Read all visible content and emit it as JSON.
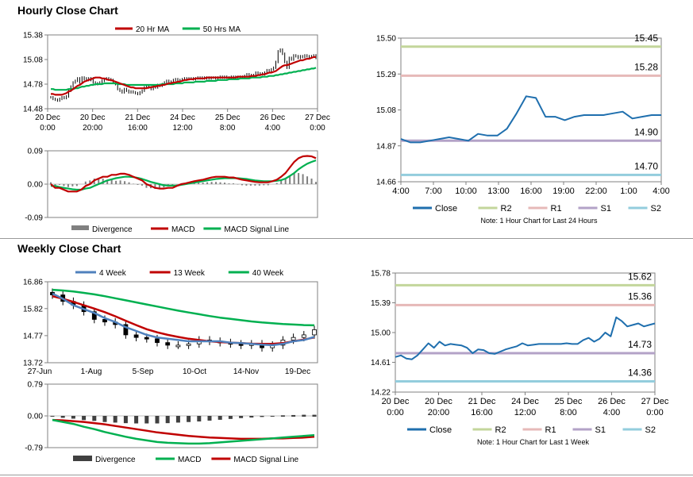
{
  "sections": {
    "hourly_title": "Hourly Close Chart",
    "weekly_title": "Weekly Close Chart"
  },
  "chart_data": [
    {
      "id": "hourly-price",
      "type": "line",
      "title": "",
      "ylim": [
        14.48,
        15.38
      ],
      "yticks": [
        "15.38",
        "15.08",
        "14.78",
        "14.48"
      ],
      "ytick_values": [
        15.38,
        15.08,
        14.78,
        14.48
      ],
      "xticks": [
        [
          "20 Dec",
          "0:00"
        ],
        [
          "20 Dec",
          "20:00"
        ],
        [
          "21 Dec",
          "16:00"
        ],
        [
          "24 Dec",
          "12:00"
        ],
        [
          "25 Dec",
          "8:00"
        ],
        [
          "26 Dec",
          "4:00"
        ],
        [
          "27 Dec",
          "0:00"
        ]
      ],
      "n": 120,
      "legend": [
        {
          "name": "20 Hr MA",
          "color": "#c00000"
        },
        {
          "name": "50 Hrs MA",
          "color": "#00b050"
        }
      ],
      "close": [
        14.62,
        14.6,
        14.59,
        14.58,
        14.6,
        14.62,
        14.61,
        14.63,
        14.7,
        14.75,
        14.8,
        14.82,
        14.85,
        14.8,
        14.86,
        14.84,
        14.85,
        14.83,
        14.85,
        14.8,
        14.78,
        14.79,
        14.8,
        14.82,
        14.84,
        14.85,
        14.84,
        14.83,
        14.8,
        14.78,
        14.72,
        14.7,
        14.68,
        14.72,
        14.7,
        14.68,
        14.69,
        14.68,
        14.67,
        14.66,
        14.68,
        14.7,
        14.74,
        14.76,
        14.74,
        14.72,
        14.75,
        14.74,
        14.77,
        14.76,
        14.78,
        14.8,
        14.82,
        14.8,
        14.81,
        14.83,
        14.84,
        14.82,
        14.83,
        14.84,
        14.85,
        14.84,
        14.85,
        14.85,
        14.84,
        14.85,
        14.86,
        14.85,
        14.86,
        14.85,
        14.86,
        14.85,
        14.86,
        14.86,
        14.85,
        14.86,
        14.87,
        14.86,
        14.87,
        14.86,
        14.86,
        14.87,
        14.86,
        14.87,
        14.86,
        14.87,
        14.86,
        14.88,
        14.9,
        14.88,
        14.89,
        14.87,
        14.92,
        14.9,
        14.91,
        14.9,
        14.92,
        14.95,
        14.93,
        14.96,
        14.98,
        15.05,
        15.18,
        15.2,
        15.15,
        15.05,
        14.98,
        15.1,
        15.08,
        15.13,
        15.12,
        15.1,
        15.12,
        15.11,
        15.13,
        15.12,
        15.11,
        15.12,
        15.13,
        15.1
      ],
      "ma20": [
        14.66,
        14.66,
        14.65,
        14.65,
        14.65,
        14.65,
        14.66,
        14.67,
        14.69,
        14.7,
        14.72,
        14.74,
        14.76,
        14.77,
        14.79,
        14.81,
        14.82,
        14.83,
        14.84,
        14.85,
        14.86,
        14.86,
        14.86,
        14.85,
        14.85,
        14.84,
        14.83,
        14.83,
        14.82,
        14.81,
        14.8,
        14.79,
        14.78,
        14.77,
        14.76,
        14.75,
        14.74,
        14.74,
        14.73,
        14.73,
        14.73,
        14.73,
        14.73,
        14.73,
        14.74,
        14.74,
        14.75,
        14.75,
        14.76,
        14.76,
        14.77,
        14.77,
        14.78,
        14.79,
        14.79,
        14.8,
        14.8,
        14.81,
        14.81,
        14.82,
        14.83,
        14.83,
        14.84,
        14.84,
        14.84,
        14.85,
        14.85,
        14.85,
        14.85,
        14.85,
        14.86,
        14.86,
        14.86,
        14.86,
        14.86,
        14.86,
        14.86,
        14.86,
        14.86,
        14.86,
        14.86,
        14.86,
        14.86,
        14.86,
        14.87,
        14.87,
        14.87,
        14.87,
        14.87,
        14.87,
        14.88,
        14.88,
        14.88,
        14.89,
        14.89,
        14.9,
        14.9,
        14.91,
        14.92,
        14.92,
        14.93,
        14.94,
        14.96,
        14.98,
        15.0,
        15.01,
        15.01,
        15.02,
        15.03,
        15.04,
        15.05,
        15.06,
        15.07,
        15.07,
        15.08,
        15.09,
        15.09,
        15.1,
        15.11,
        15.11
      ],
      "ma50": [
        14.72,
        14.72,
        14.71,
        14.71,
        14.71,
        14.71,
        14.71,
        14.71,
        14.72,
        14.72,
        14.72,
        14.73,
        14.73,
        14.74,
        14.75,
        14.75,
        14.76,
        14.76,
        14.77,
        14.77,
        14.78,
        14.78,
        14.78,
        14.78,
        14.79,
        14.79,
        14.79,
        14.79,
        14.79,
        14.79,
        14.78,
        14.78,
        14.78,
        14.78,
        14.77,
        14.77,
        14.77,
        14.77,
        14.77,
        14.77,
        14.77,
        14.77,
        14.77,
        14.77,
        14.77,
        14.77,
        14.77,
        14.77,
        14.77,
        14.77,
        14.78,
        14.78,
        14.78,
        14.78,
        14.78,
        14.78,
        14.79,
        14.79,
        14.79,
        14.79,
        14.8,
        14.8,
        14.8,
        14.8,
        14.8,
        14.81,
        14.81,
        14.81,
        14.81,
        14.81,
        14.82,
        14.82,
        14.82,
        14.82,
        14.82,
        14.83,
        14.83,
        14.83,
        14.83,
        14.83,
        14.84,
        14.84,
        14.84,
        14.84,
        14.84,
        14.85,
        14.85,
        14.85,
        14.85,
        14.85,
        14.86,
        14.86,
        14.86,
        14.86,
        14.86,
        14.87,
        14.87,
        14.87,
        14.88,
        14.88,
        14.88,
        14.89,
        14.89,
        14.9,
        14.9,
        14.91,
        14.91,
        14.92,
        14.92,
        14.93,
        14.93,
        14.94,
        14.94,
        14.95,
        14.95,
        14.96,
        14.96,
        14.97,
        14.97,
        14.98
      ]
    },
    {
      "id": "hourly-macd",
      "type": "line",
      "ylim": [
        -0.09,
        0.09
      ],
      "yticks": [
        "0.09",
        "0.00",
        "-0.09"
      ],
      "ytick_values": [
        0.09,
        0.0,
        -0.09
      ],
      "legend": [
        {
          "name": "Divergence",
          "color": "#808080"
        },
        {
          "name": "MACD",
          "color": "#c00000"
        },
        {
          "name": "MACD Signal Line",
          "color": "#00b050"
        }
      ],
      "macd": [
        0.0,
        -0.01,
        -0.01,
        -0.015,
        -0.02,
        -0.02,
        -0.02,
        -0.015,
        -0.005,
        0.0,
        0.01,
        0.015,
        0.02,
        0.02,
        0.025,
        0.025,
        0.028,
        0.028,
        0.025,
        0.02,
        0.015,
        0.01,
        0.0,
        -0.005,
        -0.01,
        -0.012,
        -0.012,
        -0.01,
        -0.01,
        -0.005,
        0.0,
        0.002,
        0.005,
        0.008,
        0.01,
        0.012,
        0.015,
        0.018,
        0.02,
        0.02,
        0.02,
        0.018,
        0.018,
        0.015,
        0.012,
        0.01,
        0.008,
        0.006,
        0.005,
        0.005,
        0.005,
        0.008,
        0.012,
        0.02,
        0.03,
        0.045,
        0.06,
        0.07,
        0.075,
        0.076,
        0.075,
        0.07
      ],
      "signal": [
        -0.005,
        -0.005,
        -0.008,
        -0.01,
        -0.012,
        -0.014,
        -0.015,
        -0.015,
        -0.012,
        -0.01,
        -0.005,
        0.0,
        0.005,
        0.01,
        0.013,
        0.016,
        0.018,
        0.02,
        0.02,
        0.019,
        0.017,
        0.014,
        0.01,
        0.006,
        0.003,
        0.0,
        -0.003,
        -0.004,
        -0.004,
        -0.004,
        -0.002,
        0.0,
        0.002,
        0.004,
        0.006,
        0.008,
        0.01,
        0.012,
        0.014,
        0.015,
        0.016,
        0.016,
        0.016,
        0.016,
        0.015,
        0.014,
        0.012,
        0.01,
        0.009,
        0.008,
        0.008,
        0.008,
        0.009,
        0.011,
        0.015,
        0.022,
        0.03,
        0.04,
        0.048,
        0.055,
        0.06,
        0.064
      ]
    },
    {
      "id": "hourly-levels",
      "type": "line",
      "ylim": [
        14.66,
        15.5
      ],
      "yticks": [
        "15.50",
        "15.29",
        "15.08",
        "14.87",
        "14.66"
      ],
      "ytick_values": [
        15.5,
        15.29,
        15.08,
        14.87,
        14.66
      ],
      "xticks": [
        "4:00",
        "7:00",
        "10:00",
        "13:00",
        "16:00",
        "19:00",
        "22:00",
        "1:00",
        "4:00"
      ],
      "levels": [
        {
          "name": "R2",
          "value": 15.45,
          "label": "15.45",
          "color": "#c3d69b"
        },
        {
          "name": "R1",
          "value": 15.28,
          "label": "15.28",
          "color": "#e6b9b8"
        },
        {
          "name": "S1",
          "value": 14.9,
          "label": "14.90",
          "color": "#b3a2c7"
        },
        {
          "name": "S2",
          "value": 14.7,
          "label": "14.70",
          "color": "#93cddd"
        }
      ],
      "close_name": "Close",
      "close_color": "#1f6fae",
      "close": [
        14.91,
        14.89,
        14.89,
        14.9,
        14.91,
        14.92,
        14.91,
        14.9,
        14.94,
        14.93,
        14.93,
        14.97,
        15.06,
        15.16,
        15.15,
        15.04,
        15.04,
        15.02,
        15.04,
        15.05,
        15.05,
        15.05,
        15.06,
        15.07,
        15.03,
        15.04,
        15.05,
        15.05
      ],
      "note": "Note: 1 Hour Chart for Last 24 Hours"
    },
    {
      "id": "weekly-price",
      "type": "line",
      "ylim": [
        13.72,
        16.86
      ],
      "yticks": [
        "16.86",
        "15.82",
        "14.77",
        "13.72"
      ],
      "ytick_values": [
        16.86,
        15.82,
        14.77,
        13.72
      ],
      "xticks": [
        "27-Jun",
        "1-Aug",
        "5-Sep",
        "10-Oct",
        "14-Nov",
        "19-Dec"
      ],
      "n": 26,
      "legend": [
        {
          "name": "4 Week",
          "color": "#4f81bd"
        },
        {
          "name": "13 Week",
          "color": "#c00000"
        },
        {
          "name": "40 Week",
          "color": "#00b050"
        }
      ],
      "close": [
        16.35,
        16.1,
        15.95,
        15.7,
        15.4,
        15.3,
        15.2,
        14.8,
        14.7,
        14.65,
        14.5,
        14.4,
        14.4,
        14.45,
        14.6,
        14.55,
        14.5,
        14.45,
        14.4,
        14.45,
        14.3,
        14.4,
        14.6,
        14.7,
        14.8,
        15.0
      ],
      "ma4": [
        16.4,
        16.2,
        15.95,
        15.8,
        15.65,
        15.45,
        15.3,
        15.1,
        14.95,
        14.8,
        14.7,
        14.65,
        14.6,
        14.55,
        14.55,
        14.55,
        14.55,
        14.5,
        14.48,
        14.45,
        14.42,
        14.4,
        14.45,
        14.55,
        14.6,
        14.72
      ],
      "ma13": [
        16.3,
        16.2,
        16.08,
        15.95,
        15.82,
        15.68,
        15.52,
        15.35,
        15.18,
        15.02,
        14.9,
        14.8,
        14.72,
        14.65,
        14.6,
        14.55,
        14.52,
        14.5,
        14.48,
        14.46,
        14.45,
        14.45,
        14.48,
        14.55,
        14.62,
        14.7
      ],
      "ma40": [
        16.55,
        16.52,
        16.48,
        16.43,
        16.37,
        16.3,
        16.22,
        16.14,
        16.06,
        15.98,
        15.9,
        15.82,
        15.74,
        15.67,
        15.6,
        15.53,
        15.47,
        15.42,
        15.37,
        15.32,
        15.28,
        15.25,
        15.22,
        15.2,
        15.18,
        15.17
      ]
    },
    {
      "id": "weekly-macd",
      "type": "line",
      "ylim": [
        -0.79,
        0.79
      ],
      "yticks": [
        "0.79",
        "0.00",
        "-0.79"
      ],
      "ytick_values": [
        0.79,
        0.0,
        -0.79
      ],
      "legend": [
        {
          "name": "Divergence",
          "color": "#404040"
        },
        {
          "name": "MACD",
          "color": "#00b050"
        },
        {
          "name": "MACD Signal Line",
          "color": "#c00000"
        }
      ],
      "macd": [
        -0.1,
        -0.15,
        -0.2,
        -0.27,
        -0.33,
        -0.4,
        -0.46,
        -0.52,
        -0.57,
        -0.61,
        -0.65,
        -0.67,
        -0.68,
        -0.69,
        -0.69,
        -0.68,
        -0.66,
        -0.64,
        -0.62,
        -0.6,
        -0.58,
        -0.56,
        -0.54,
        -0.52,
        -0.5,
        -0.48
      ],
      "signal": [
        -0.1,
        -0.11,
        -0.13,
        -0.15,
        -0.18,
        -0.21,
        -0.25,
        -0.29,
        -0.33,
        -0.37,
        -0.41,
        -0.44,
        -0.47,
        -0.5,
        -0.52,
        -0.54,
        -0.55,
        -0.56,
        -0.57,
        -0.57,
        -0.57,
        -0.56,
        -0.56,
        -0.55,
        -0.54,
        -0.52
      ]
    },
    {
      "id": "weekly-levels",
      "type": "line",
      "ylim": [
        14.22,
        15.78
      ],
      "yticks": [
        "15.78",
        "15.39",
        "15.00",
        "14.61",
        "14.22"
      ],
      "ytick_values": [
        15.78,
        15.39,
        15.0,
        14.61,
        14.22
      ],
      "xticks": [
        [
          "20 Dec",
          "0:00"
        ],
        [
          "20 Dec",
          "20:00"
        ],
        [
          "21 Dec",
          "16:00"
        ],
        [
          "24 Dec",
          "12:00"
        ],
        [
          "25 Dec",
          "8:00"
        ],
        [
          "26 Dec",
          "4:00"
        ],
        [
          "27 Dec",
          "0:00"
        ]
      ],
      "levels": [
        {
          "name": "R2",
          "value": 15.62,
          "label": "15.62",
          "color": "#c3d69b"
        },
        {
          "name": "R1",
          "value": 15.36,
          "label": "15.36",
          "color": "#e6b9b8"
        },
        {
          "name": "S1",
          "value": 14.73,
          "label": "14.73",
          "color": "#b3a2c7"
        },
        {
          "name": "S2",
          "value": 14.36,
          "label": "14.36",
          "color": "#93cddd"
        }
      ],
      "close_name": "Close",
      "close_color": "#1f6fae",
      "close": [
        14.68,
        14.7,
        14.66,
        14.65,
        14.7,
        14.78,
        14.86,
        14.8,
        14.88,
        14.83,
        14.85,
        14.84,
        14.83,
        14.8,
        14.73,
        14.78,
        14.77,
        14.73,
        14.72,
        14.75,
        14.78,
        14.8,
        14.82,
        14.86,
        14.83,
        14.84,
        14.85,
        14.85,
        14.85,
        14.85,
        14.85,
        14.86,
        14.85,
        14.85,
        14.9,
        14.93,
        14.88,
        14.92,
        15.0,
        14.95,
        15.2,
        15.15,
        15.08,
        15.1,
        15.12,
        15.08,
        15.1,
        15.12
      ],
      "note": "Note: 1 Hour Chart for Last 1 Week"
    }
  ]
}
